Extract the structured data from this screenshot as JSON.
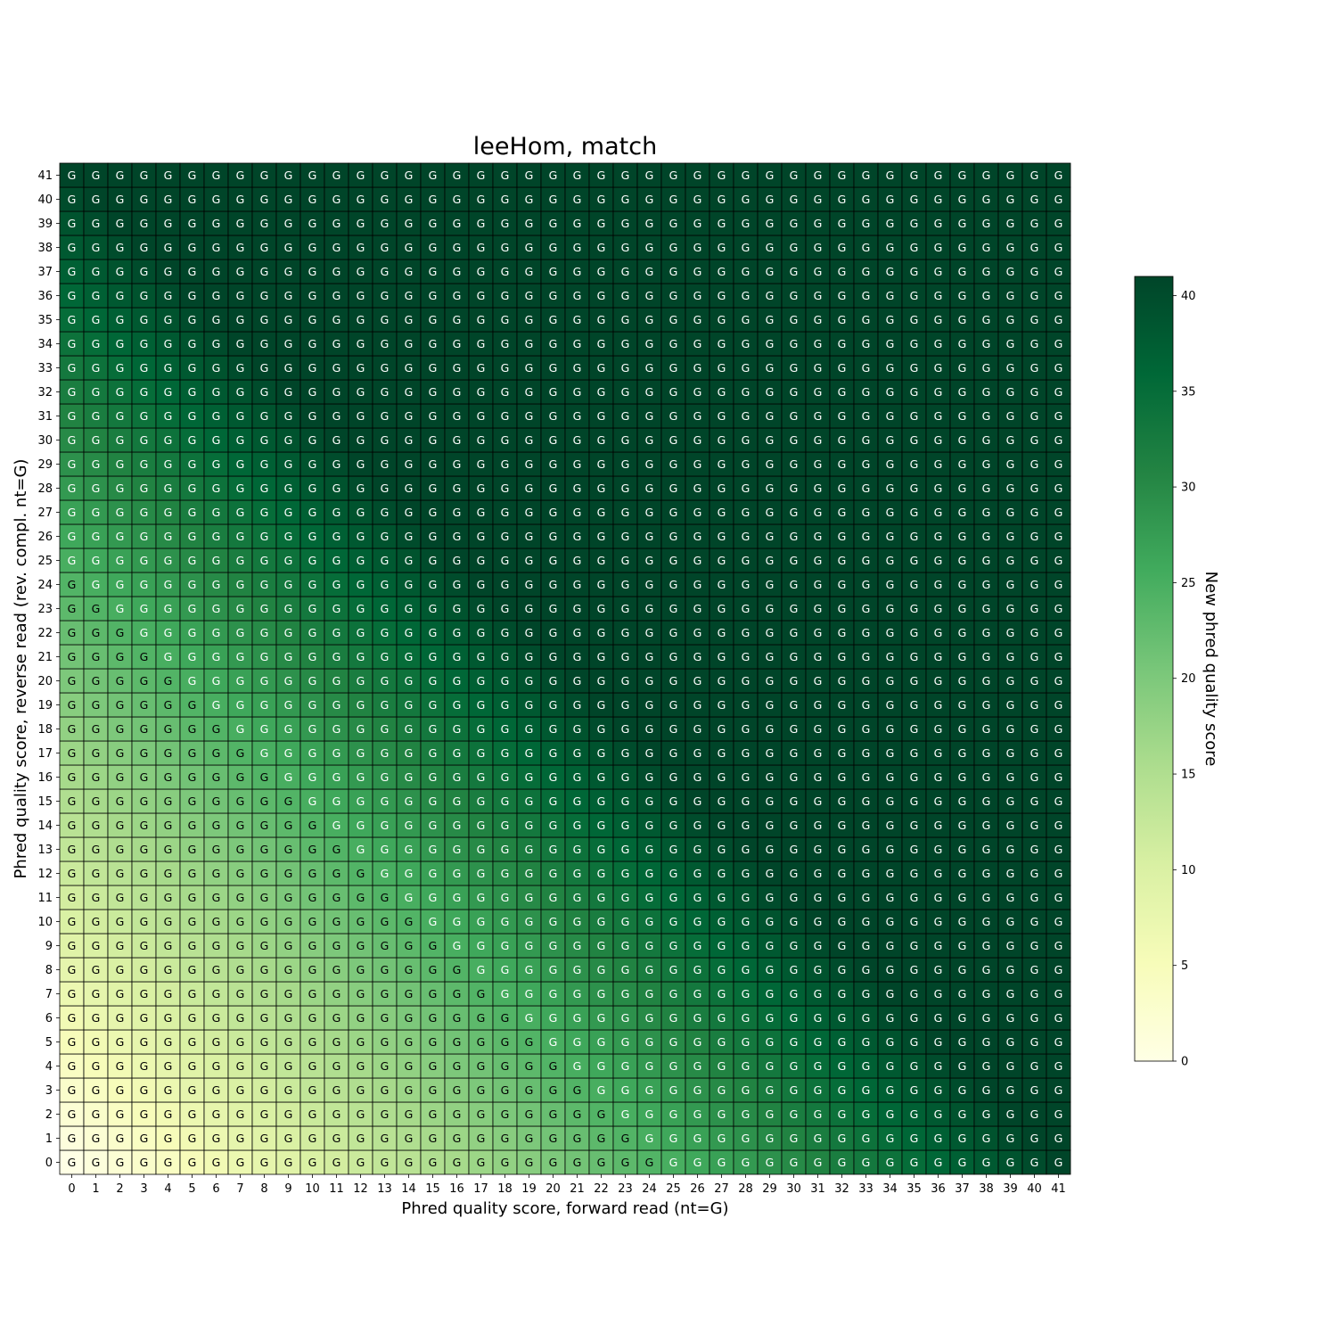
{
  "chart_data": {
    "type": "heatmap",
    "title": "leeHom, match",
    "xlabel": "Phred quality score, forward read (nt=G)",
    "ylabel": "Phred quality score, reverse read (rev. compl. nt=G)",
    "x": [
      0,
      1,
      2,
      3,
      4,
      5,
      6,
      7,
      8,
      9,
      10,
      11,
      12,
      13,
      14,
      15,
      16,
      17,
      18,
      19,
      20,
      21,
      22,
      23,
      24,
      25,
      26,
      27,
      28,
      29,
      30,
      31,
      32,
      33,
      34,
      35,
      36,
      37,
      38,
      39,
      40,
      41
    ],
    "y": [
      0,
      1,
      2,
      3,
      4,
      5,
      6,
      7,
      8,
      9,
      10,
      11,
      12,
      13,
      14,
      15,
      16,
      17,
      18,
      19,
      20,
      21,
      22,
      23,
      24,
      25,
      26,
      27,
      28,
      29,
      30,
      31,
      32,
      33,
      34,
      35,
      36,
      37,
      38,
      39,
      40,
      41
    ],
    "values": "new phred quality score ≈ min(41, x + y)",
    "value_rule": {
      "combine": "sum",
      "cap": 41
    },
    "cell_annotation": "G",
    "colorbar": {
      "label": "New phred quality score",
      "range": [
        0,
        41
      ],
      "ticks": [
        0,
        5,
        10,
        15,
        20,
        25,
        30,
        35,
        40
      ],
      "colormap": "YlGn"
    },
    "colors": {
      "cmap_stops": [
        "#ffffe5",
        "#f7fcb9",
        "#d9f0a3",
        "#addd8e",
        "#78c679",
        "#41ab5d",
        "#238443",
        "#006837",
        "#004529"
      ],
      "cell_border": "#000000",
      "annotation_light": "#ffffff",
      "annotation_dark": "#000000"
    },
    "grid": false
  }
}
